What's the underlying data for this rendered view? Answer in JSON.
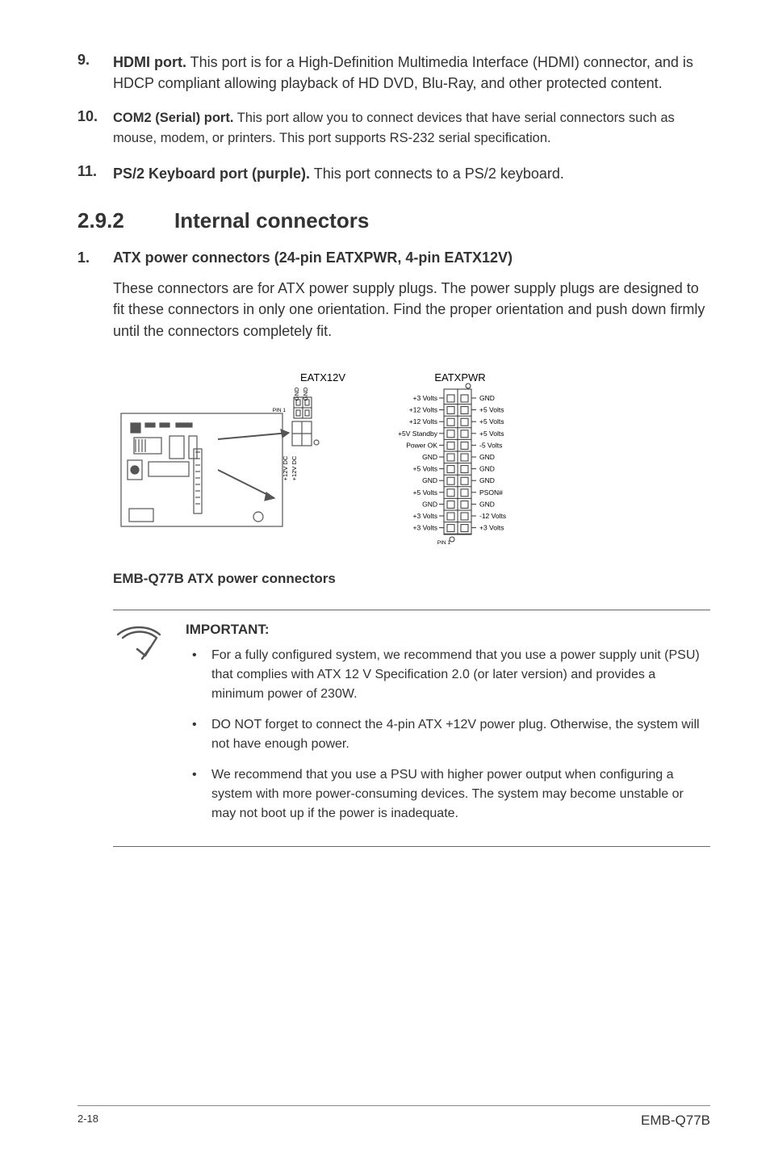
{
  "items": {
    "n9": {
      "num": "9.",
      "title": "HDMI port.",
      "text": " This port is for a High-Definition Multimedia Interface (HDMI) connector, and is HDCP compliant allowing playback of HD DVD, Blu-Ray, and other protected content."
    },
    "n10": {
      "num": "10.",
      "title": "COM2 (Serial) port.",
      "text": " This port allow you to connect devices that have serial connectors such as mouse, modem, or printers. This port supports RS-232 serial specification."
    },
    "n11": {
      "num": "11.",
      "title": "PS/2 Keyboard port (purple).",
      "text": " This port connects to a PS/2 keyboard."
    }
  },
  "section": {
    "num": "2.9.2",
    "title": "Internal connectors"
  },
  "sub1": {
    "num": "1.",
    "title": "ATX power connectors (24-pin EATXPWR, 4-pin EATX12V)",
    "body": "These connectors are for ATX power supply plugs. The power supply plugs are designed to fit these connectors in only one orientation. Find the proper orientation and push down firmly until the connectors completely fit."
  },
  "diagram": {
    "label_eatx12v": "EATX12V",
    "label_eatxpwr": "EATXPWR",
    "pin1a": "PIN 1",
    "pin1b": "PIN 1",
    "gnd_a": "GND",
    "gnd_b": "GND",
    "p12a": "+12V DC",
    "p12b": "+12V DC",
    "left_labels": [
      "+3 Volts",
      "+12 Volts",
      "+12 Volts",
      "+5V Standby",
      "Power OK",
      "GND",
      "+5 Volts",
      "GND",
      "+5 Volts",
      "GND",
      "+3 Volts",
      "+3 Volts"
    ],
    "right_labels": [
      "GND",
      "+5 Volts",
      "+5 Volts",
      "+5 Volts",
      "-5 Volts",
      "GND",
      "GND",
      "GND",
      "PSON#",
      "GND",
      "-12 Volts",
      "+3 Volts"
    ],
    "caption": "EMB-Q77B ATX power connectors"
  },
  "note": {
    "heading": "IMPORTANT:",
    "bullets": [
      "For a fully configured system, we recommend that you use a power supply unit (PSU) that complies with ATX 12 V Specification 2.0 (or later version) and provides a minimum power of 230W.",
      "DO NOT forget to connect the 4-pin  ATX +12V power plug. Otherwise, the system will not have enough power.",
      "We recommend that you use a PSU with higher power output when configuring a system with more power-consuming devices. The system may become unstable or may not boot up if the power is inadequate."
    ]
  },
  "footer": {
    "page": "2-18",
    "model": "EMB-Q77B"
  },
  "colors": {
    "text": "#333333",
    "rule": "#666666",
    "pcb_stroke": "#555555"
  }
}
